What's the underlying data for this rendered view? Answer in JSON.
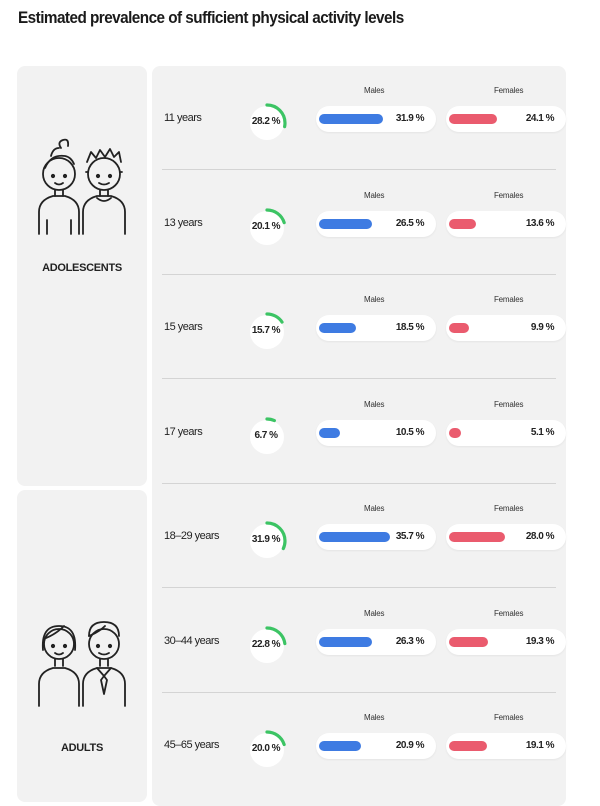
{
  "page": {
    "title": "Estimated prevalence of sufficient physical activity levels"
  },
  "groups": [
    {
      "label": "ADOLESCENTS",
      "icon": "adolescents-icon"
    },
    {
      "label": "ADULTS",
      "icon": "adults-icon"
    }
  ],
  "colors": {
    "male": "#3e7be2",
    "female": "#ea5b6e",
    "gauge": "#3cc464",
    "panel": "#f2f2f2"
  },
  "chart_data": {
    "type": "table",
    "title": "Estimated prevalence of sufficient physical activity levels",
    "unit": "%",
    "series_labels": {
      "male": "Males",
      "female": "Females"
    },
    "rows": [
      {
        "group": "ADOLESCENTS",
        "age": "11 years",
        "total": 28.2,
        "total_label": "28.2 %",
        "male": 31.9,
        "male_label": "31.9 %",
        "female": 24.1,
        "female_label": "24.1 %"
      },
      {
        "group": "ADOLESCENTS",
        "age": "13 years",
        "total": 20.1,
        "total_label": "20.1 %",
        "male": 26.5,
        "male_label": "26.5 %",
        "female": 13.6,
        "female_label": "13.6 %"
      },
      {
        "group": "ADOLESCENTS",
        "age": "15 years",
        "total": 15.7,
        "total_label": "15.7 %",
        "male": 18.5,
        "male_label": "18.5 %",
        "female": 9.9,
        "female_label": "9.9 %"
      },
      {
        "group": "ADOLESCENTS",
        "age": "17 years",
        "total": 6.7,
        "total_label": "6.7 %",
        "male": 10.5,
        "male_label": "10.5 %",
        "female": 5.1,
        "female_label": "5.1 %"
      },
      {
        "group": "ADULTS",
        "age": "18–29 years",
        "total": 31.9,
        "total_label": "31.9 %",
        "male": 35.7,
        "male_label": "35.7 %",
        "female": 28.0,
        "female_label": "28.0 %"
      },
      {
        "group": "ADULTS",
        "age": "30–44 years",
        "total": 22.8,
        "total_label": "22.8 %",
        "male": 26.3,
        "male_label": "26.3 %",
        "female": 19.3,
        "female_label": "19.3 %"
      },
      {
        "group": "ADULTS",
        "age": "45–65 years",
        "total": 20.0,
        "total_label": "20.0 %",
        "male": 20.9,
        "male_label": "20.9 %",
        "female": 19.1,
        "female_label": "19.1 %"
      }
    ]
  }
}
